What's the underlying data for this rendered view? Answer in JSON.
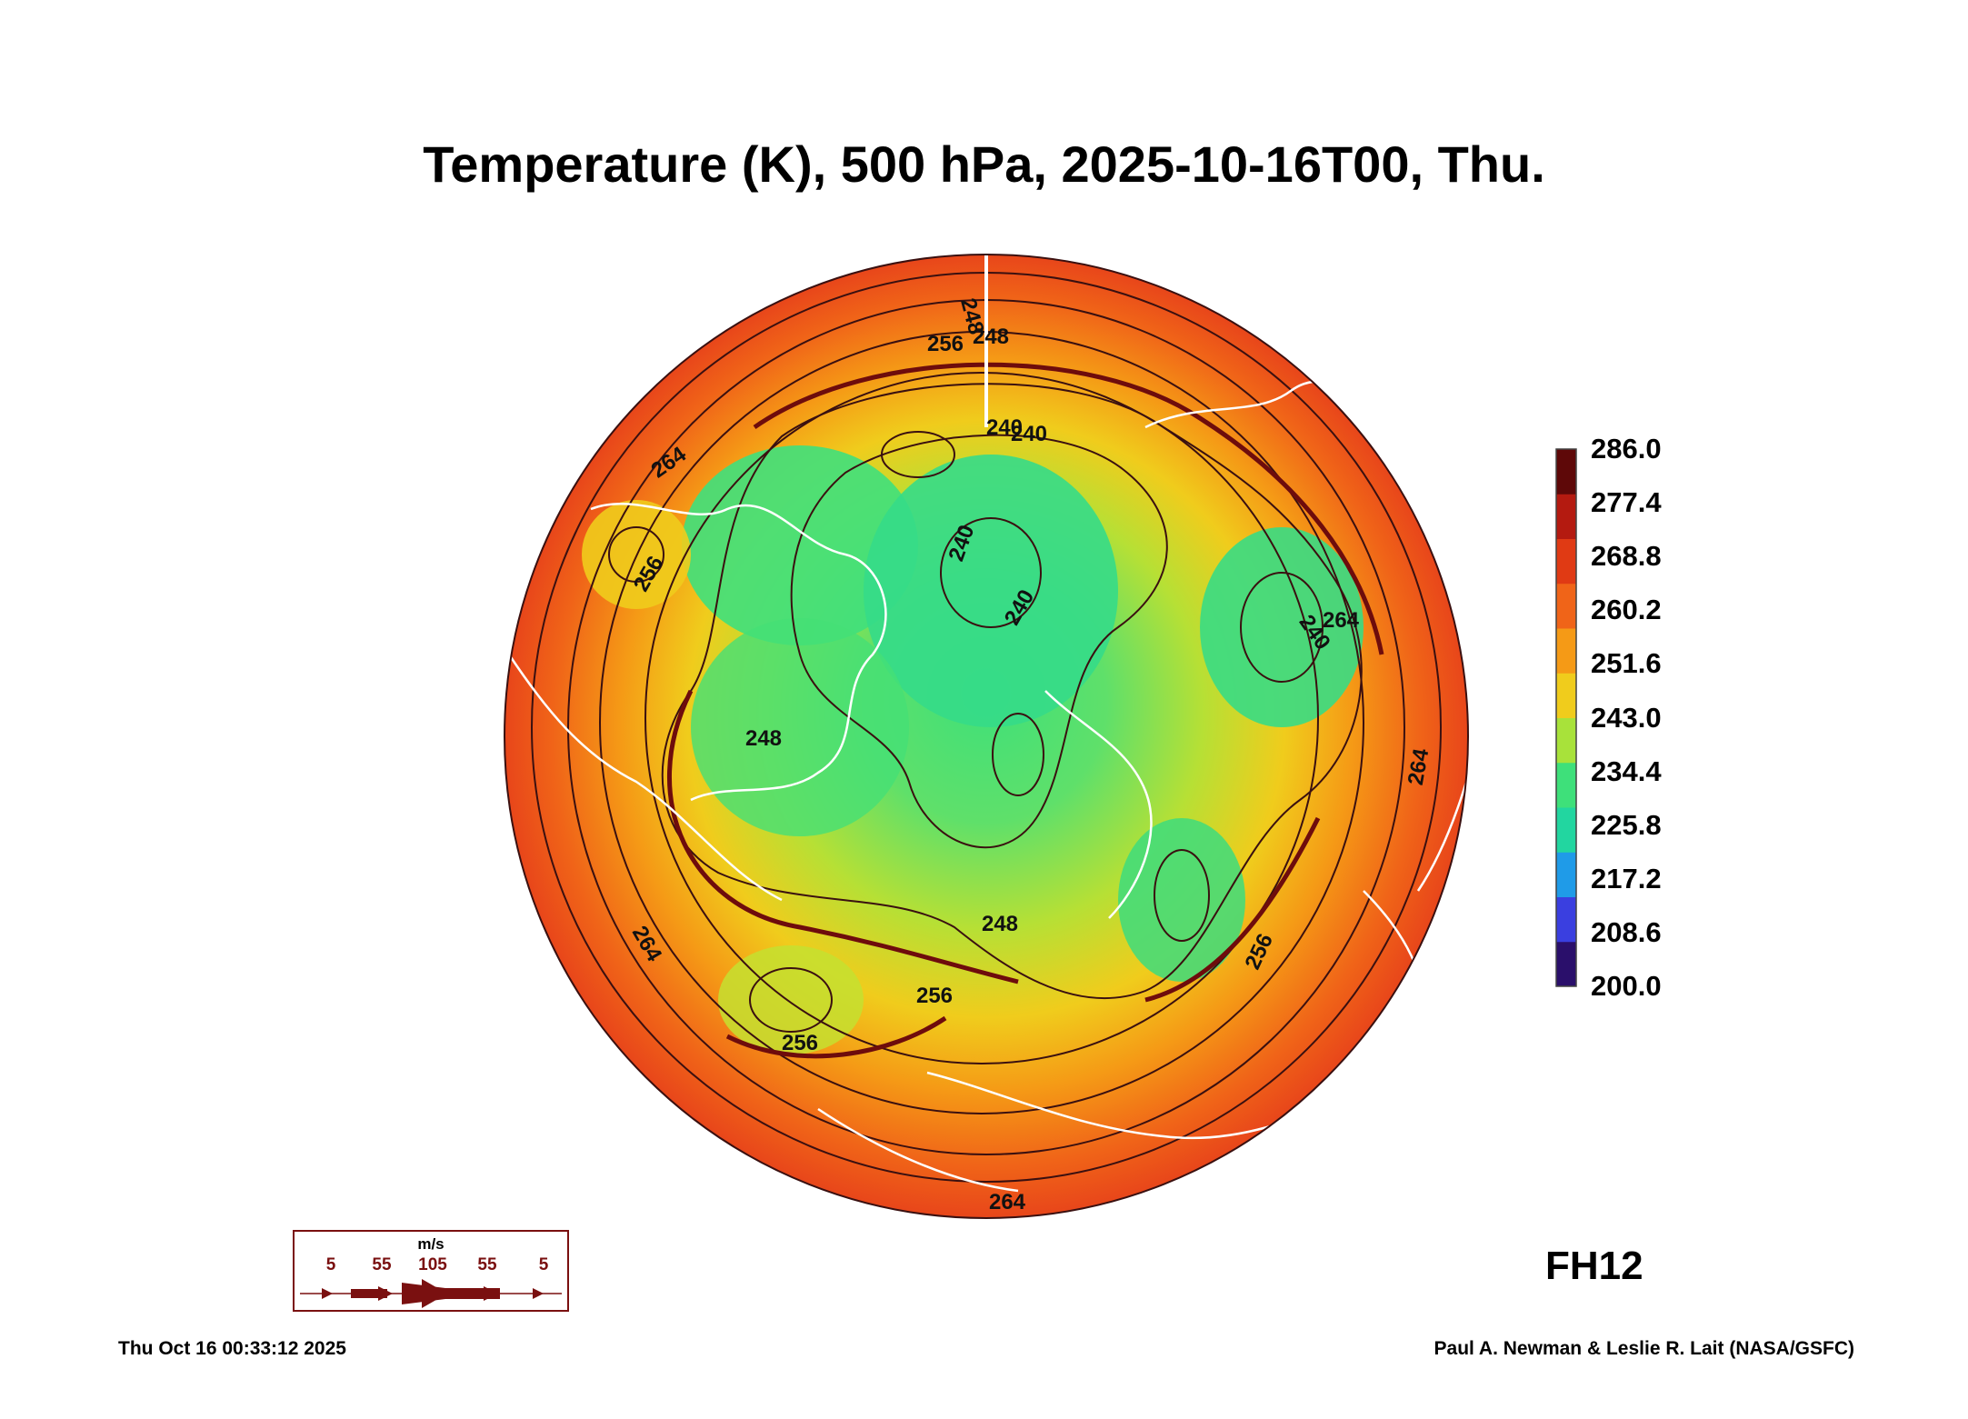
{
  "title": "Temperature (K), 500 hPa, 2025-10-16T00, Thu.",
  "colorbar": {
    "ticks": [
      "286.0",
      "277.4",
      "268.8",
      "260.2",
      "251.6",
      "243.0",
      "234.4",
      "225.8",
      "217.2",
      "208.6",
      "200.0"
    ],
    "min": 200.0,
    "max": 286.0,
    "colors": [
      "#2a0f6b",
      "#3a3fe0",
      "#1f9be8",
      "#22d6a0",
      "#3ee07a",
      "#a8e23a",
      "#f0cc1c",
      "#f59a16",
      "#f06418",
      "#e03a14",
      "#b41a10",
      "#5e0808"
    ]
  },
  "contour_labels": [
    "240",
    "240",
    "240",
    "240",
    "240",
    "248",
    "248",
    "248",
    "256",
    "256",
    "256",
    "256",
    "256",
    "264",
    "264",
    "264",
    "264",
    "264",
    "248"
  ],
  "forecast_hour": "FH12",
  "wind_legend": {
    "unit": "m/s",
    "labels": [
      "5",
      "55",
      "105",
      "55",
      "5"
    ]
  },
  "footer": {
    "timestamp": "Thu Oct 16 00:33:12 2025",
    "credit": "Paul A. Newman & Leslie R. Lait (NASA/GSFC)"
  }
}
